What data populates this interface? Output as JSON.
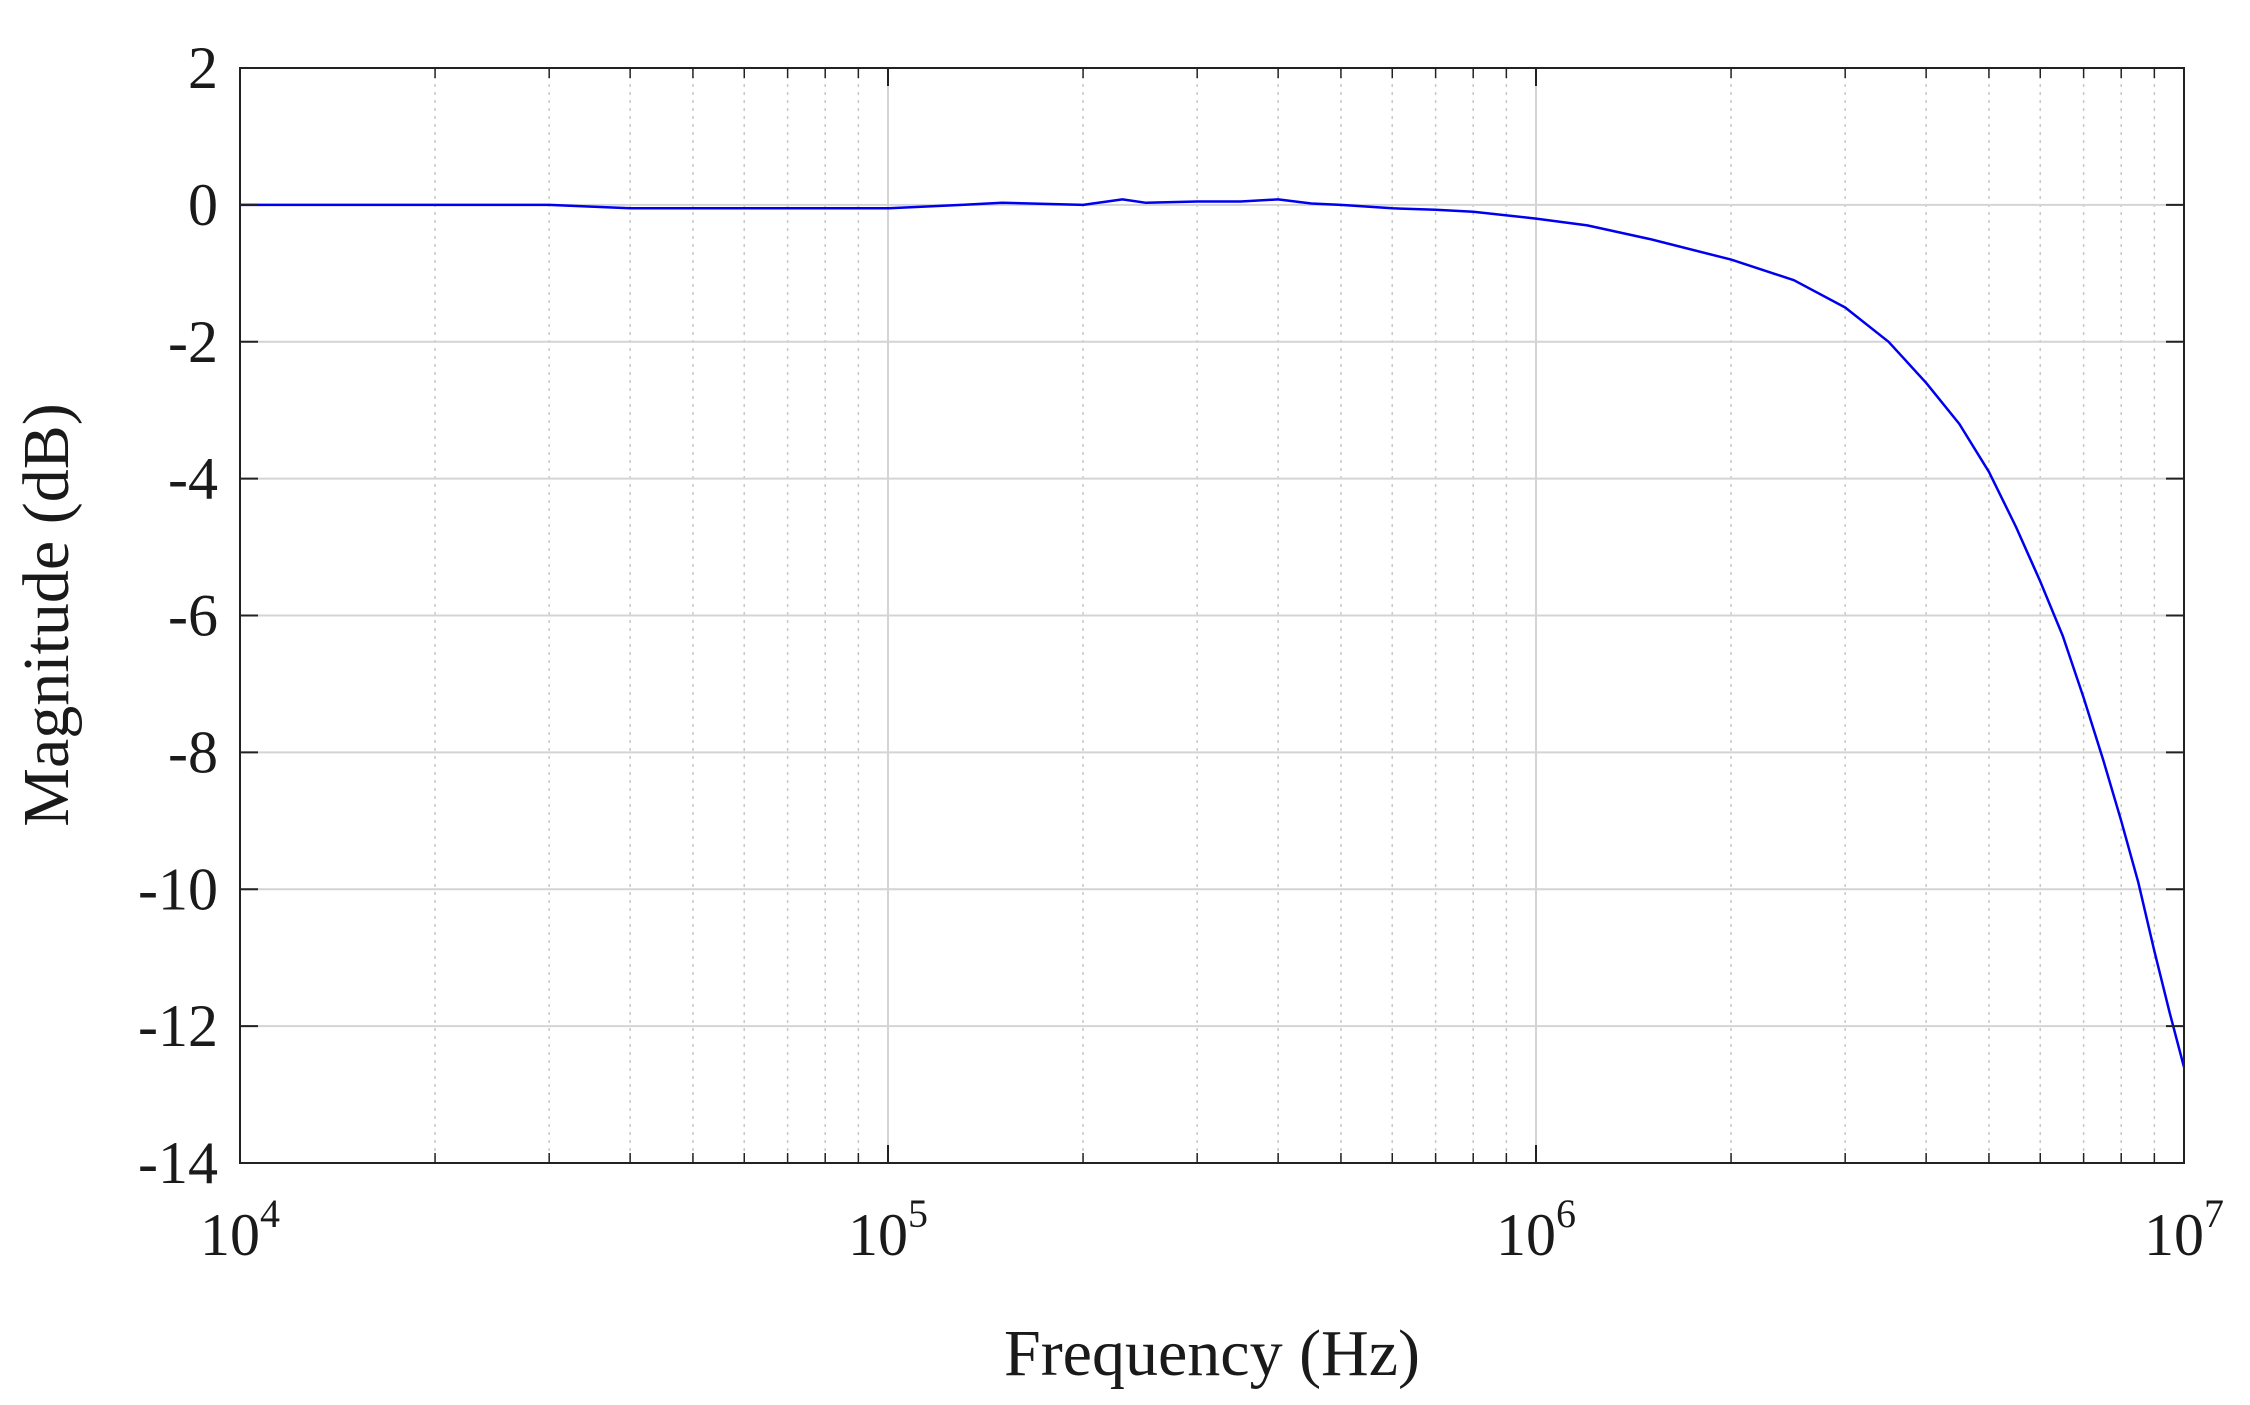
{
  "chart_data": {
    "type": "line",
    "xlabel": "Frequency (Hz)",
    "ylabel": "Magnitude (dB)",
    "xscale": "log",
    "xlim": [
      10000,
      10000000
    ],
    "ylim": [
      -14,
      2
    ],
    "grid": true,
    "x_ticks": [
      {
        "base": "10",
        "exp": "4",
        "value": 10000
      },
      {
        "base": "10",
        "exp": "5",
        "value": 100000
      },
      {
        "base": "10",
        "exp": "6",
        "value": 1000000
      },
      {
        "base": "10",
        "exp": "7",
        "value": 10000000
      }
    ],
    "y_ticks": [
      {
        "label": "2",
        "value": 2
      },
      {
        "label": "0",
        "value": 0
      },
      {
        "label": "-2",
        "value": -2
      },
      {
        "label": "-4",
        "value": -4
      },
      {
        "label": "-6",
        "value": -6
      },
      {
        "label": "-8",
        "value": -8
      },
      {
        "label": "-10",
        "value": -10
      },
      {
        "label": "-12",
        "value": -12
      },
      {
        "label": "-14",
        "value": -14
      }
    ],
    "series": [
      {
        "color": "#0000ee",
        "x": [
          10000,
          20000,
          30000,
          40000,
          60000,
          100000,
          130000,
          150000,
          200000,
          230000,
          250000,
          300000,
          350000,
          400000,
          450000,
          500000,
          600000,
          700000,
          800000,
          1000000,
          1200000,
          1500000,
          2000000,
          2500000,
          3000000,
          3500000,
          4000000,
          4500000,
          5000000,
          5500000,
          6000000,
          6500000,
          7000000,
          7500000,
          8000000,
          8500000,
          9000000,
          9500000,
          10000000
        ],
        "y": [
          0,
          0,
          0,
          -0.05,
          -0.05,
          -0.05,
          0,
          0.03,
          0,
          0.08,
          0.03,
          0.05,
          0.05,
          0.08,
          0.02,
          0,
          -0.05,
          -0.07,
          -0.1,
          -0.2,
          -0.3,
          -0.5,
          -0.8,
          -1.1,
          -1.5,
          -2.0,
          -2.6,
          -3.2,
          -3.9,
          -4.7,
          -5.5,
          -6.3,
          -7.2,
          -8.1,
          -9.0,
          -9.9,
          -10.9,
          -11.8,
          -12.6
        ]
      }
    ]
  }
}
